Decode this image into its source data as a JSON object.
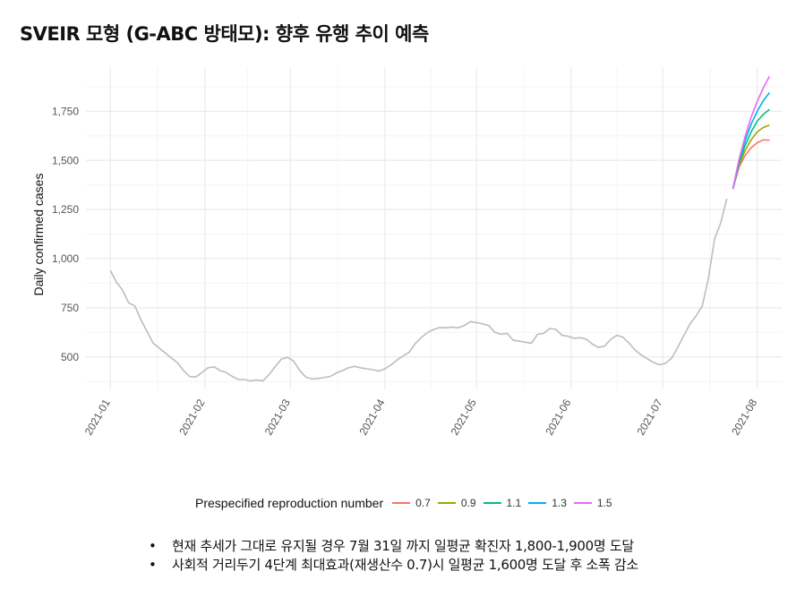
{
  "title": "SVEIR 모형 (G-ABC 방태모): 향후 유행 추이 예측",
  "chart_data": {
    "type": "line",
    "title": "SVEIR 모형 (G-ABC 방태모): 향후 유행 추이 예측",
    "xlabel": "",
    "ylabel": "Daily confirmed cases",
    "x_ticks": [
      "2021-01",
      "2021-02",
      "2021-03",
      "2021-04",
      "2021-05",
      "2021-06",
      "2021-07",
      "2021-08"
    ],
    "y_ticks": [
      500,
      750,
      1000,
      1250,
      1500,
      1750
    ],
    "y_tick_labels": [
      "500",
      "750",
      "1,000",
      "1,250",
      "1,500",
      "1,750"
    ],
    "xlim": [
      "2020-12-24",
      "2021-08-09"
    ],
    "ylim": [
      335,
      1975
    ],
    "grid": true,
    "legend_position": "bottom",
    "legend_title": "Prespecified reproduction number",
    "observed": {
      "color": "#bdbdbd",
      "points": [
        [
          "2021-01-01",
          940
        ],
        [
          "2021-01-03",
          880
        ],
        [
          "2021-01-05",
          840
        ],
        [
          "2021-01-07",
          775
        ],
        [
          "2021-01-09",
          760
        ],
        [
          "2021-01-11",
          690
        ],
        [
          "2021-01-13",
          630
        ],
        [
          "2021-01-15",
          570
        ],
        [
          "2021-01-17",
          545
        ],
        [
          "2021-01-19",
          520
        ],
        [
          "2021-01-21",
          495
        ],
        [
          "2021-01-23",
          470
        ],
        [
          "2021-01-25",
          430
        ],
        [
          "2021-01-27",
          400
        ],
        [
          "2021-01-29",
          398
        ],
        [
          "2021-01-31",
          420
        ],
        [
          "2021-02-02",
          445
        ],
        [
          "2021-02-04",
          450
        ],
        [
          "2021-02-06",
          430
        ],
        [
          "2021-02-08",
          420
        ],
        [
          "2021-02-10",
          400
        ],
        [
          "2021-02-12",
          385
        ],
        [
          "2021-02-14",
          385
        ],
        [
          "2021-02-16",
          378
        ],
        [
          "2021-02-18",
          383
        ],
        [
          "2021-02-20",
          378
        ],
        [
          "2021-02-22",
          410
        ],
        [
          "2021-02-24",
          450
        ],
        [
          "2021-02-26",
          488
        ],
        [
          "2021-02-28",
          498
        ],
        [
          "2021-03-02",
          480
        ],
        [
          "2021-03-04",
          432
        ],
        [
          "2021-03-06",
          398
        ],
        [
          "2021-03-08",
          388
        ],
        [
          "2021-03-10",
          390
        ],
        [
          "2021-03-12",
          395
        ],
        [
          "2021-03-14",
          400
        ],
        [
          "2021-03-16",
          418
        ],
        [
          "2021-03-18",
          430
        ],
        [
          "2021-03-20",
          445
        ],
        [
          "2021-03-22",
          452
        ],
        [
          "2021-03-24",
          445
        ],
        [
          "2021-03-26",
          440
        ],
        [
          "2021-03-28",
          435
        ],
        [
          "2021-03-30",
          428
        ],
        [
          "2021-04-01",
          440
        ],
        [
          "2021-04-03",
          460
        ],
        [
          "2021-04-05",
          485
        ],
        [
          "2021-04-07",
          505
        ],
        [
          "2021-04-09",
          525
        ],
        [
          "2021-04-11",
          570
        ],
        [
          "2021-04-13",
          600
        ],
        [
          "2021-04-15",
          625
        ],
        [
          "2021-04-17",
          640
        ],
        [
          "2021-04-19",
          650
        ],
        [
          "2021-04-21",
          648
        ],
        [
          "2021-04-23",
          652
        ],
        [
          "2021-04-25",
          648
        ],
        [
          "2021-04-27",
          660
        ],
        [
          "2021-04-29",
          680
        ],
        [
          "2021-05-01",
          675
        ],
        [
          "2021-05-03",
          668
        ],
        [
          "2021-05-05",
          660
        ],
        [
          "2021-05-07",
          625
        ],
        [
          "2021-05-09",
          615
        ],
        [
          "2021-05-11",
          620
        ],
        [
          "2021-05-13",
          585
        ],
        [
          "2021-05-15",
          580
        ],
        [
          "2021-05-17",
          575
        ],
        [
          "2021-05-19",
          570
        ],
        [
          "2021-05-21",
          615
        ],
        [
          "2021-05-23",
          620
        ],
        [
          "2021-05-25",
          645
        ],
        [
          "2021-05-27",
          640
        ],
        [
          "2021-05-29",
          610
        ],
        [
          "2021-05-31",
          605
        ],
        [
          "2021-06-02",
          595
        ],
        [
          "2021-06-04",
          598
        ],
        [
          "2021-06-06",
          590
        ],
        [
          "2021-06-08",
          565
        ],
        [
          "2021-06-10",
          548
        ],
        [
          "2021-06-12",
          555
        ],
        [
          "2021-06-14",
          590
        ],
        [
          "2021-06-16",
          610
        ],
        [
          "2021-06-18",
          600
        ],
        [
          "2021-06-20",
          570
        ],
        [
          "2021-06-22",
          535
        ],
        [
          "2021-06-24",
          510
        ],
        [
          "2021-06-26",
          490
        ],
        [
          "2021-06-28",
          472
        ],
        [
          "2021-06-30",
          460
        ],
        [
          "2021-07-02",
          468
        ],
        [
          "2021-07-04",
          495
        ],
        [
          "2021-07-06",
          550
        ],
        [
          "2021-07-08",
          610
        ],
        [
          "2021-07-10",
          670
        ],
        [
          "2021-07-12",
          710
        ],
        [
          "2021-07-14",
          760
        ],
        [
          "2021-07-16",
          900
        ],
        [
          "2021-07-18",
          1100
        ],
        [
          "2021-07-20",
          1180
        ],
        [
          "2021-07-22",
          1305
        ]
      ]
    },
    "series": [
      {
        "name": "0.7",
        "color": "#F8766D",
        "points": [
          [
            "2021-07-24",
            1355
          ],
          [
            "2021-07-26",
            1465
          ],
          [
            "2021-07-28",
            1525
          ],
          [
            "2021-07-30",
            1565
          ],
          [
            "2021-08-01",
            1590
          ],
          [
            "2021-08-03",
            1605
          ],
          [
            "2021-08-05",
            1603
          ]
        ]
      },
      {
        "name": "0.9",
        "color": "#A3A500",
        "points": [
          [
            "2021-07-24",
            1355
          ],
          [
            "2021-07-26",
            1475
          ],
          [
            "2021-07-28",
            1550
          ],
          [
            "2021-07-30",
            1605
          ],
          [
            "2021-08-01",
            1645
          ],
          [
            "2021-08-03",
            1668
          ],
          [
            "2021-08-05",
            1680
          ]
        ]
      },
      {
        "name": "1.1",
        "color": "#00BF7D",
        "points": [
          [
            "2021-07-24",
            1355
          ],
          [
            "2021-07-26",
            1485
          ],
          [
            "2021-07-28",
            1575
          ],
          [
            "2021-07-30",
            1645
          ],
          [
            "2021-08-01",
            1700
          ],
          [
            "2021-08-03",
            1735
          ],
          [
            "2021-08-05",
            1760
          ]
        ]
      },
      {
        "name": "1.3",
        "color": "#00B0F6",
        "points": [
          [
            "2021-07-24",
            1355
          ],
          [
            "2021-07-26",
            1495
          ],
          [
            "2021-07-28",
            1600
          ],
          [
            "2021-07-30",
            1685
          ],
          [
            "2021-08-01",
            1750
          ],
          [
            "2021-08-03",
            1805
          ],
          [
            "2021-08-05",
            1845
          ]
        ]
      },
      {
        "name": "1.5",
        "color": "#E76BF3",
        "points": [
          [
            "2021-07-24",
            1355
          ],
          [
            "2021-07-26",
            1505
          ],
          [
            "2021-07-28",
            1620
          ],
          [
            "2021-07-30",
            1720
          ],
          [
            "2021-08-01",
            1800
          ],
          [
            "2021-08-03",
            1870
          ],
          [
            "2021-08-05",
            1928
          ]
        ]
      }
    ]
  },
  "notes": [
    "현재 추세가 그대로 유지될 경우 7월 31일 까지 일평균 확진자 1,800-1,900명 도달",
    "사회적 거리두기 4단계 최대효과(재생산수 0.7)시 일평균 1,600명 도달 후 소폭 감소"
  ]
}
